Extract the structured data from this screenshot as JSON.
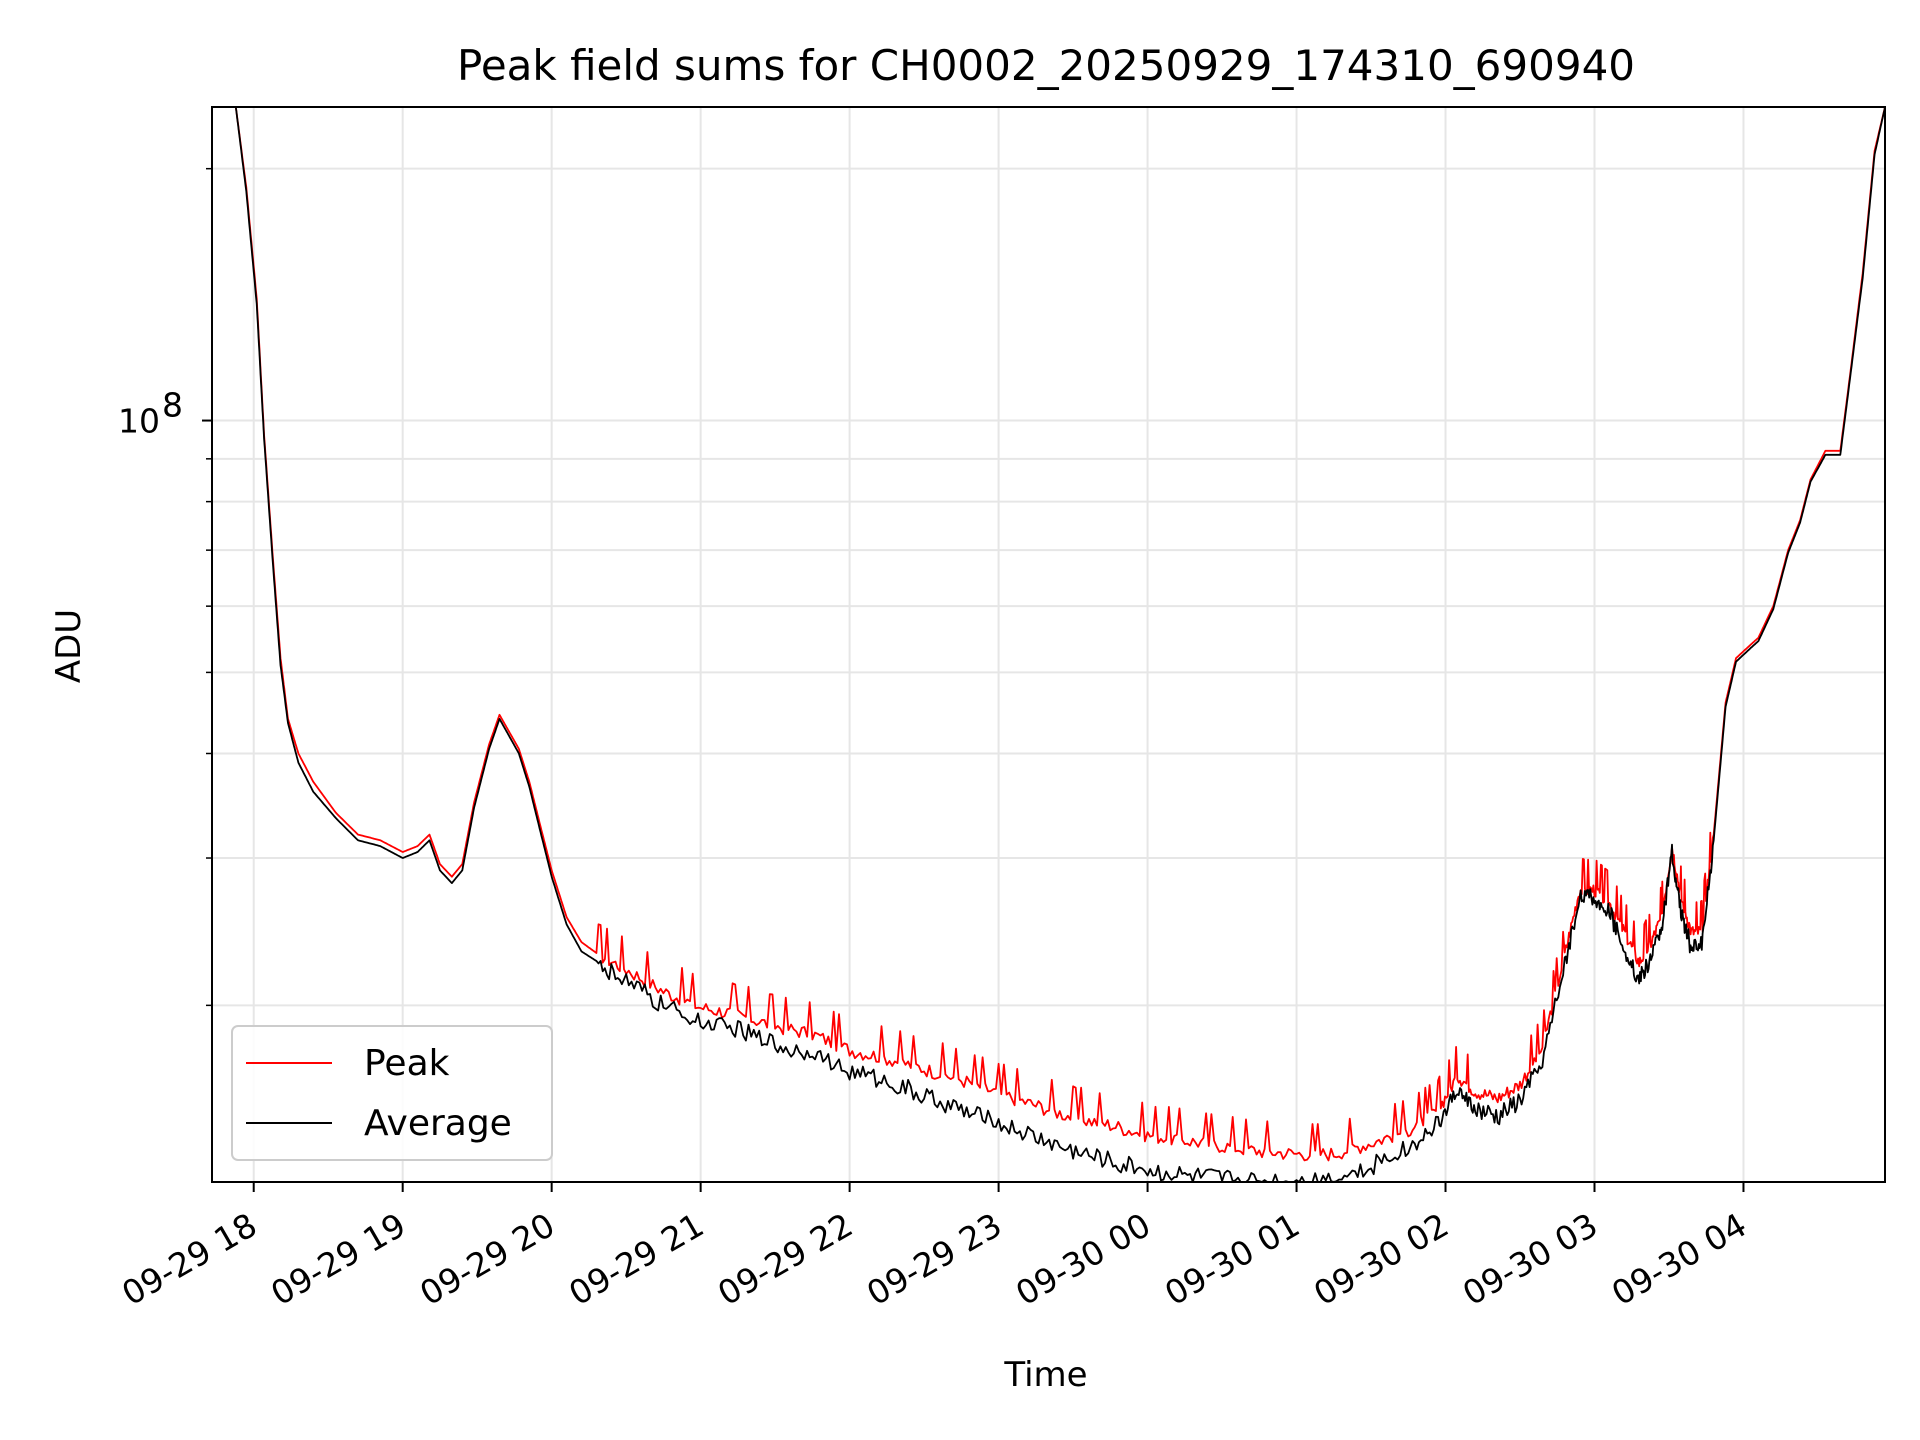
{
  "chart_data": {
    "type": "line",
    "title": "Peak field sums for CH0002_20250929_174310_690940",
    "xlabel": "Time",
    "ylabel": "ADU",
    "yscale": "log",
    "ylim": [
      12300000,
      237000000
    ],
    "xlim_hours": [
      17.72,
      28.95
    ],
    "grid": true,
    "legend_position": "lower-left",
    "colors": {
      "peak": "#ff0000",
      "average": "#000000",
      "grid": "#e6e6e6",
      "axis": "#000000"
    },
    "x_ticks": [
      {
        "hour": 18,
        "label": "09-29 18"
      },
      {
        "hour": 19,
        "label": "09-29 19"
      },
      {
        "hour": 20,
        "label": "09-29 20"
      },
      {
        "hour": 21,
        "label": "09-29 21"
      },
      {
        "hour": 22,
        "label": "09-29 22"
      },
      {
        "hour": 23,
        "label": "09-29 23"
      },
      {
        "hour": 24,
        "label": "09-30 00"
      },
      {
        "hour": 25,
        "label": "09-30 01"
      },
      {
        "hour": 26,
        "label": "09-30 02"
      },
      {
        "hour": 27,
        "label": "09-30 03"
      },
      {
        "hour": 28,
        "label": "09-30 04"
      }
    ],
    "y_major_tick": {
      "value": 100000000,
      "base": "10",
      "exponent": "8"
    },
    "y_minor_ticks": [
      20000000,
      30000000,
      40000000,
      50000000,
      60000000,
      70000000,
      80000000,
      90000000,
      200000000
    ],
    "series": [
      {
        "name": "Peak",
        "key": "peak",
        "x_hours": [
          17.72,
          17.88,
          17.95,
          18.02,
          18.07,
          18.13,
          18.18,
          18.23,
          18.3,
          18.4,
          18.55,
          18.7,
          18.85,
          19.0,
          19.1,
          19.18,
          19.25,
          19.33,
          19.4,
          19.48,
          19.58,
          19.65,
          19.73,
          19.78,
          19.85,
          19.92,
          20.0,
          20.1,
          20.2,
          20.3,
          20.5,
          20.75,
          21.0,
          21.25,
          21.5,
          21.75,
          22.0,
          22.25,
          22.5,
          22.75,
          23.0,
          23.25,
          23.5,
          23.75,
          24.0,
          24.25,
          24.5,
          24.75,
          25.0,
          25.25,
          25.5,
          25.75,
          25.95,
          26.08,
          26.2,
          26.35,
          26.5,
          26.65,
          26.8,
          26.9,
          27.0,
          27.1,
          27.2,
          27.3,
          27.38,
          27.45,
          27.52,
          27.58,
          27.65,
          27.72,
          27.8,
          27.88,
          27.95,
          28.05,
          28.1,
          28.2,
          28.3,
          28.38,
          28.45,
          28.55,
          28.65,
          28.72,
          28.8,
          28.88,
          28.95
        ],
        "values": [
          237000000,
          237000000,
          190000000,
          140000000,
          96000000,
          68000000,
          52000000,
          44000000,
          40000000,
          37000000,
          34000000,
          32000000,
          31500000,
          30500000,
          31000000,
          32000000,
          29500000,
          28500000,
          29500000,
          35000000,
          41000000,
          44500000,
          42000000,
          40500000,
          37000000,
          33000000,
          29000000,
          25500000,
          23800000,
          23100000,
          22100000,
          20800000,
          19900000,
          19500000,
          18900000,
          18500000,
          17700000,
          17300000,
          16800000,
          16300000,
          15700000,
          15200000,
          14700000,
          14400000,
          14000000,
          13800000,
          13600000,
          13400000,
          13300000,
          13300000,
          13700000,
          14200000,
          15000000,
          16500000,
          15800000,
          15500000,
          16100000,
          17800000,
          23000000,
          27500000,
          27500000,
          26500000,
          24500000,
          22500000,
          23800000,
          25500000,
          31000000,
          27000000,
          24500000,
          24500000,
          32000000,
          46000000,
          52000000,
          54000000,
          55000000,
          60000000,
          70000000,
          76000000,
          85000000,
          92000000,
          92000000,
          115000000,
          150000000,
          210000000,
          237000000
        ]
      },
      {
        "name": "Average",
        "key": "average",
        "x_hours": [
          17.72,
          17.88,
          17.95,
          18.02,
          18.07,
          18.13,
          18.18,
          18.23,
          18.3,
          18.4,
          18.55,
          18.7,
          18.85,
          19.0,
          19.1,
          19.18,
          19.25,
          19.33,
          19.4,
          19.48,
          19.58,
          19.65,
          19.73,
          19.78,
          19.85,
          19.92,
          20.0,
          20.1,
          20.2,
          20.3,
          20.5,
          20.75,
          21.0,
          21.25,
          21.5,
          21.75,
          22.0,
          22.25,
          22.5,
          22.75,
          23.0,
          23.25,
          23.5,
          23.75,
          24.0,
          24.25,
          24.5,
          24.75,
          25.0,
          25.25,
          25.5,
          25.75,
          25.95,
          26.08,
          26.2,
          26.35,
          26.5,
          26.65,
          26.8,
          26.9,
          27.0,
          27.1,
          27.2,
          27.3,
          27.38,
          27.45,
          27.52,
          27.58,
          27.65,
          27.72,
          27.8,
          27.88,
          27.95,
          28.05,
          28.1,
          28.2,
          28.3,
          28.38,
          28.45,
          28.55,
          28.65,
          28.72,
          28.8,
          28.88,
          28.95
        ],
        "values": [
          237000000,
          237000000,
          188000000,
          138000000,
          95000000,
          67000000,
          51000000,
          43500000,
          39000000,
          36000000,
          33500000,
          31500000,
          31000000,
          30000000,
          30500000,
          31500000,
          29000000,
          28000000,
          29000000,
          34500000,
          40500000,
          44000000,
          41500000,
          40000000,
          36500000,
          32500000,
          28500000,
          25000000,
          23200000,
          22600000,
          21500000,
          20100000,
          19100000,
          18800000,
          18100000,
          17600000,
          16800000,
          16300000,
          15700000,
          15100000,
          14500000,
          14000000,
          13500000,
          13100000,
          12800000,
          12600000,
          12500000,
          12400000,
          12400000,
          12500000,
          12900000,
          13600000,
          14500000,
          15900000,
          15100000,
          14800000,
          15500000,
          17200000,
          22500000,
          27000000,
          27000000,
          26000000,
          23500000,
          21500000,
          23000000,
          24800000,
          30500000,
          26000000,
          23500000,
          23800000,
          31500000,
          45500000,
          51500000,
          53500000,
          54500000,
          59500000,
          69500000,
          75500000,
          84500000,
          91000000,
          91000000,
          114000000,
          148000000,
          208000000,
          237000000
        ]
      }
    ]
  }
}
